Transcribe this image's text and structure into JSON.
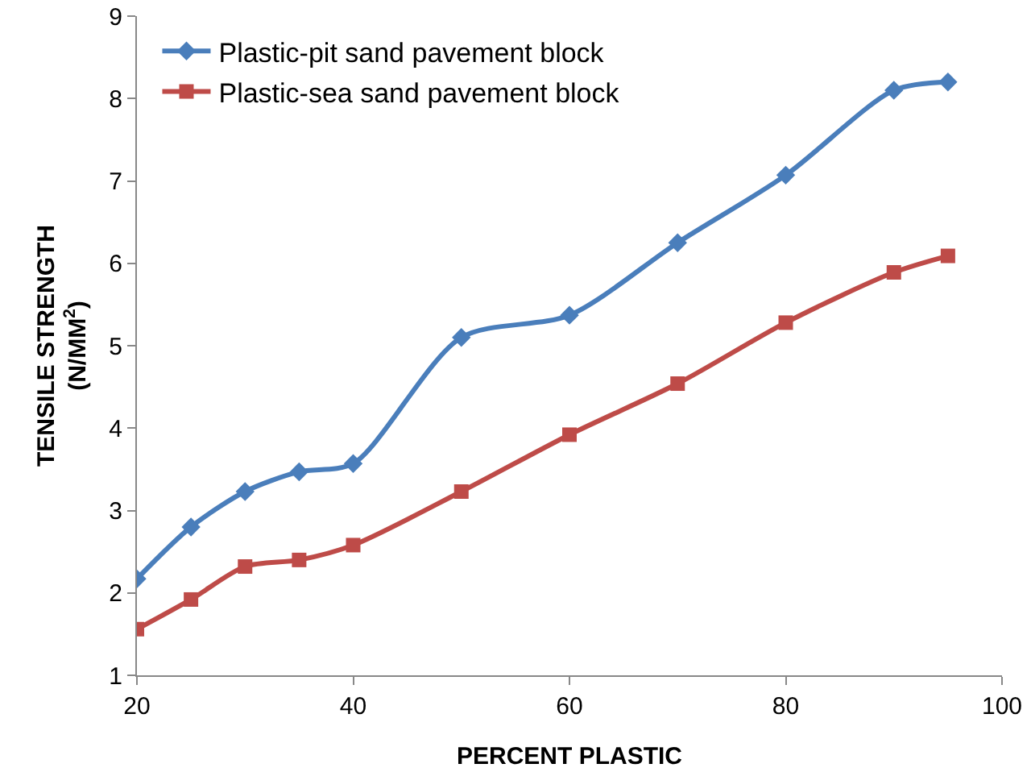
{
  "chart_data": {
    "type": "line",
    "xlabel": "PERCENT PLASTIC",
    "ylabel": "TENSILE STRENGTH\n(N/MM$^{2}$)",
    "x": [
      20,
      25,
      30,
      35,
      40,
      50,
      60,
      70,
      80,
      90,
      95
    ],
    "series": [
      {
        "name": "Plastic-pit sand pavement block",
        "color": "#4a7ebb",
        "marker": "diamond",
        "values": [
          2.17,
          2.8,
          3.23,
          3.47,
          3.57,
          5.1,
          5.37,
          6.25,
          7.07,
          8.1,
          8.2
        ]
      },
      {
        "name": "Plastic-sea sand pavement block",
        "color": "#be4b48",
        "marker": "square",
        "values": [
          1.56,
          1.92,
          2.32,
          2.4,
          2.58,
          3.23,
          3.92,
          4.54,
          5.28,
          5.89,
          6.09
        ]
      }
    ],
    "xlim": [
      20,
      100
    ],
    "xticks": [
      20,
      40,
      60,
      80,
      100
    ],
    "ylim": [
      1,
      9
    ],
    "yticks": [
      1,
      2,
      3,
      4,
      5,
      6,
      7,
      8,
      9
    ],
    "grid": false,
    "legend": "top left",
    "line_style": "solid"
  }
}
